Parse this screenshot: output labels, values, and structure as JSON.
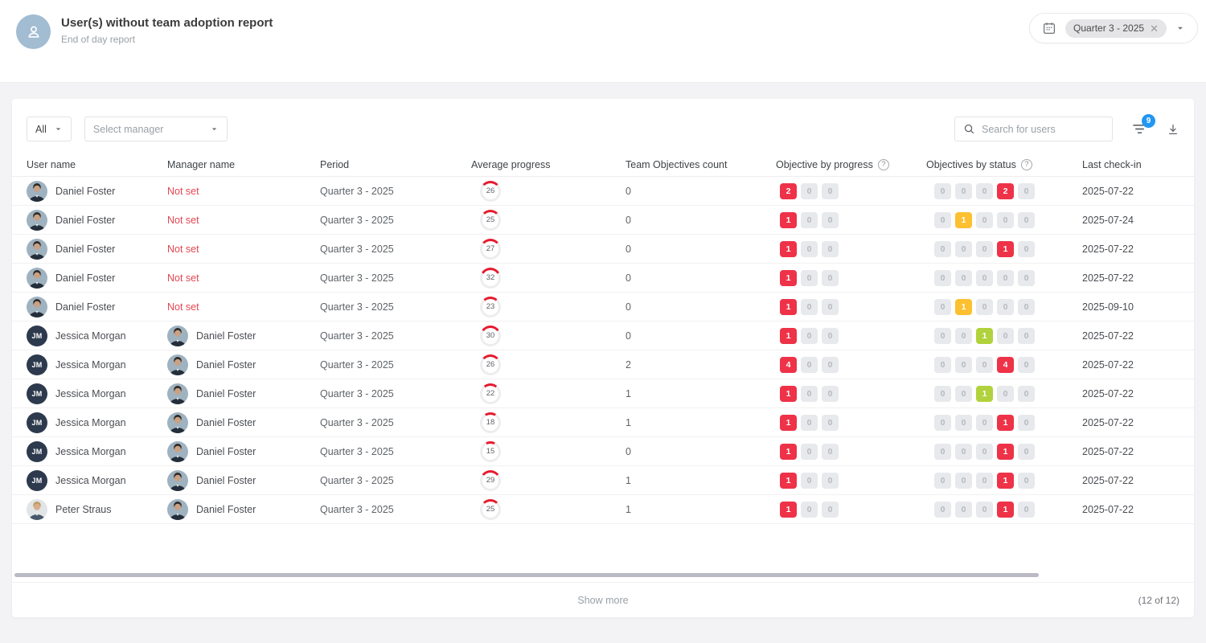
{
  "page": {
    "title": "User(s) without team adoption report",
    "subtitle": "End of day report"
  },
  "period": {
    "chip_label": "Quarter 3 - 2025",
    "close_glyph": "✕"
  },
  "filters": {
    "all_label": "All",
    "manager_placeholder": "Select manager",
    "search_placeholder": "Search for users",
    "filter_badge_count": "9"
  },
  "table": {
    "columns": [
      "User name",
      "Manager name",
      "Period",
      "Average progress",
      "Team Objectives count",
      "Objective by progress",
      "Objectives by status",
      "Last check-in"
    ],
    "help_glyph": "?",
    "rows": [
      {
        "user": "Daniel Foster",
        "user_avatar": "daniel",
        "manager": "Not set",
        "manager_avatar": null,
        "period": "Quarter 3 - 2025",
        "avg_progress": 26,
        "team_count": "0",
        "by_progress": [
          [
            "2",
            "red"
          ],
          [
            "0",
            "gray"
          ],
          [
            "0",
            "gray"
          ]
        ],
        "by_status": [
          [
            "0",
            "gray"
          ],
          [
            "0",
            "gray"
          ],
          [
            "0",
            "gray"
          ],
          [
            "2",
            "red"
          ],
          [
            "0",
            "gray"
          ]
        ],
        "last_checkin": "2025-07-22"
      },
      {
        "user": "Daniel Foster",
        "user_avatar": "daniel",
        "manager": "Not set",
        "manager_avatar": null,
        "period": "Quarter 3 - 2025",
        "avg_progress": 25,
        "team_count": "0",
        "by_progress": [
          [
            "1",
            "red"
          ],
          [
            "0",
            "gray"
          ],
          [
            "0",
            "gray"
          ]
        ],
        "by_status": [
          [
            "0",
            "gray"
          ],
          [
            "1",
            "yellow"
          ],
          [
            "0",
            "gray"
          ],
          [
            "0",
            "gray"
          ],
          [
            "0",
            "gray"
          ]
        ],
        "last_checkin": "2025-07-24"
      },
      {
        "user": "Daniel Foster",
        "user_avatar": "daniel",
        "manager": "Not set",
        "manager_avatar": null,
        "period": "Quarter 3 - 2025",
        "avg_progress": 27,
        "team_count": "0",
        "by_progress": [
          [
            "1",
            "red"
          ],
          [
            "0",
            "gray"
          ],
          [
            "0",
            "gray"
          ]
        ],
        "by_status": [
          [
            "0",
            "gray"
          ],
          [
            "0",
            "gray"
          ],
          [
            "0",
            "gray"
          ],
          [
            "1",
            "red"
          ],
          [
            "0",
            "gray"
          ]
        ],
        "last_checkin": "2025-07-22"
      },
      {
        "user": "Daniel Foster",
        "user_avatar": "daniel",
        "manager": "Not set",
        "manager_avatar": null,
        "period": "Quarter 3 - 2025",
        "avg_progress": 32,
        "team_count": "0",
        "by_progress": [
          [
            "1",
            "red"
          ],
          [
            "0",
            "gray"
          ],
          [
            "0",
            "gray"
          ]
        ],
        "by_status": [
          [
            "0",
            "gray"
          ],
          [
            "0",
            "gray"
          ],
          [
            "0",
            "gray"
          ],
          [
            "0",
            "gray"
          ],
          [
            "0",
            "gray"
          ]
        ],
        "last_checkin": "2025-07-22"
      },
      {
        "user": "Daniel Foster",
        "user_avatar": "daniel",
        "manager": "Not set",
        "manager_avatar": null,
        "period": "Quarter 3 - 2025",
        "avg_progress": 23,
        "team_count": "0",
        "by_progress": [
          [
            "1",
            "red"
          ],
          [
            "0",
            "gray"
          ],
          [
            "0",
            "gray"
          ]
        ],
        "by_status": [
          [
            "0",
            "gray"
          ],
          [
            "1",
            "yellow"
          ],
          [
            "0",
            "gray"
          ],
          [
            "0",
            "gray"
          ],
          [
            "0",
            "gray"
          ]
        ],
        "last_checkin": "2025-09-10"
      },
      {
        "user": "Jessica Morgan",
        "user_avatar": "jessica",
        "manager": "Daniel Foster",
        "manager_avatar": "daniel",
        "period": "Quarter 3 - 2025",
        "avg_progress": 30,
        "team_count": "0",
        "by_progress": [
          [
            "1",
            "red"
          ],
          [
            "0",
            "gray"
          ],
          [
            "0",
            "gray"
          ]
        ],
        "by_status": [
          [
            "0",
            "gray"
          ],
          [
            "0",
            "gray"
          ],
          [
            "1",
            "green"
          ],
          [
            "0",
            "gray"
          ],
          [
            "0",
            "gray"
          ]
        ],
        "last_checkin": "2025-07-22"
      },
      {
        "user": "Jessica Morgan",
        "user_avatar": "jessica",
        "manager": "Daniel Foster",
        "manager_avatar": "daniel",
        "period": "Quarter 3 - 2025",
        "avg_progress": 26,
        "team_count": "2",
        "by_progress": [
          [
            "4",
            "red"
          ],
          [
            "0",
            "gray"
          ],
          [
            "0",
            "gray"
          ]
        ],
        "by_status": [
          [
            "0",
            "gray"
          ],
          [
            "0",
            "gray"
          ],
          [
            "0",
            "gray"
          ],
          [
            "4",
            "red"
          ],
          [
            "0",
            "gray"
          ]
        ],
        "last_checkin": "2025-07-22"
      },
      {
        "user": "Jessica Morgan",
        "user_avatar": "jessica",
        "manager": "Daniel Foster",
        "manager_avatar": "daniel",
        "period": "Quarter 3 - 2025",
        "avg_progress": 22,
        "team_count": "1",
        "by_progress": [
          [
            "1",
            "red"
          ],
          [
            "0",
            "gray"
          ],
          [
            "0",
            "gray"
          ]
        ],
        "by_status": [
          [
            "0",
            "gray"
          ],
          [
            "0",
            "gray"
          ],
          [
            "1",
            "green"
          ],
          [
            "0",
            "gray"
          ],
          [
            "0",
            "gray"
          ]
        ],
        "last_checkin": "2025-07-22"
      },
      {
        "user": "Jessica Morgan",
        "user_avatar": "jessica",
        "manager": "Daniel Foster",
        "manager_avatar": "daniel",
        "period": "Quarter 3 - 2025",
        "avg_progress": 18,
        "team_count": "1",
        "by_progress": [
          [
            "1",
            "red"
          ],
          [
            "0",
            "gray"
          ],
          [
            "0",
            "gray"
          ]
        ],
        "by_status": [
          [
            "0",
            "gray"
          ],
          [
            "0",
            "gray"
          ],
          [
            "0",
            "gray"
          ],
          [
            "1",
            "red"
          ],
          [
            "0",
            "gray"
          ]
        ],
        "last_checkin": "2025-07-22"
      },
      {
        "user": "Jessica Morgan",
        "user_avatar": "jessica",
        "manager": "Daniel Foster",
        "manager_avatar": "daniel",
        "period": "Quarter 3 - 2025",
        "avg_progress": 15,
        "team_count": "0",
        "by_progress": [
          [
            "1",
            "red"
          ],
          [
            "0",
            "gray"
          ],
          [
            "0",
            "gray"
          ]
        ],
        "by_status": [
          [
            "0",
            "gray"
          ],
          [
            "0",
            "gray"
          ],
          [
            "0",
            "gray"
          ],
          [
            "1",
            "red"
          ],
          [
            "0",
            "gray"
          ]
        ],
        "last_checkin": "2025-07-22"
      },
      {
        "user": "Jessica Morgan",
        "user_avatar": "jessica",
        "manager": "Daniel Foster",
        "manager_avatar": "daniel",
        "period": "Quarter 3 - 2025",
        "avg_progress": 29,
        "team_count": "1",
        "by_progress": [
          [
            "1",
            "red"
          ],
          [
            "0",
            "gray"
          ],
          [
            "0",
            "gray"
          ]
        ],
        "by_status": [
          [
            "0",
            "gray"
          ],
          [
            "0",
            "gray"
          ],
          [
            "0",
            "gray"
          ],
          [
            "1",
            "red"
          ],
          [
            "0",
            "gray"
          ]
        ],
        "last_checkin": "2025-07-22"
      },
      {
        "user": "Peter Straus",
        "user_avatar": "peter",
        "manager": "Daniel Foster",
        "manager_avatar": "daniel",
        "period": "Quarter 3 - 2025",
        "avg_progress": 25,
        "team_count": "1",
        "by_progress": [
          [
            "1",
            "red"
          ],
          [
            "0",
            "gray"
          ],
          [
            "0",
            "gray"
          ]
        ],
        "by_status": [
          [
            "0",
            "gray"
          ],
          [
            "0",
            "gray"
          ],
          [
            "0",
            "gray"
          ],
          [
            "1",
            "red"
          ],
          [
            "0",
            "gray"
          ]
        ],
        "last_checkin": "2025-07-22"
      }
    ]
  },
  "avatars": {
    "daniel": {
      "kind": "photo",
      "bg": "#9fb2c0",
      "suit": "#232e3a",
      "skin": "#c9a183",
      "hair": "#2e2a26"
    },
    "jessica": {
      "kind": "initials",
      "text": "JM",
      "bg": "#2d3a4d",
      "fg": "#ffffff"
    },
    "peter": {
      "kind": "photo",
      "bg": "#e1e5e7",
      "suit": "#46586a",
      "skin": "#d8ad8c",
      "hair": "#bf9a62"
    }
  },
  "colors": {
    "ring_red": "#e51b2f",
    "ring_track": "#ededee"
  },
  "footer": {
    "show_more": "Show more",
    "count": "(12 of 12)"
  }
}
